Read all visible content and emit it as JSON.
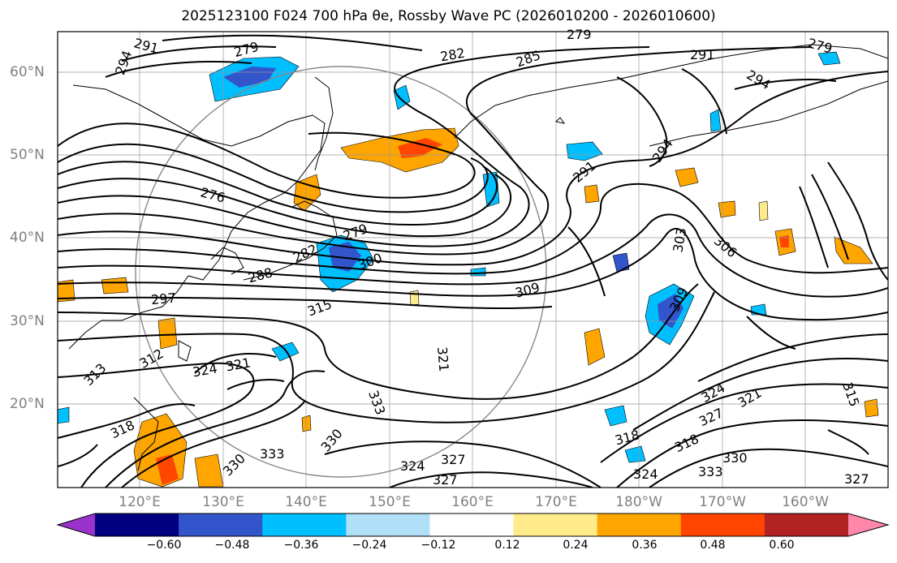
{
  "title": "2025123100 F024 700 hPa θe, Rossby Wave PC (2026010200 - 2026010600)",
  "lat_labels": [
    "60°N",
    "50°N",
    "40°N",
    "30°N",
    "20°N"
  ],
  "lon_labels": [
    "120°E",
    "130°E",
    "140°E",
    "150°E",
    "160°E",
    "170°E",
    "180°W",
    "170°W",
    "160°W"
  ],
  "colorbar": {
    "ticks": [
      "−0.60",
      "−0.48",
      "−0.36",
      "−0.24",
      "−0.12",
      "0.12",
      "0.24",
      "0.36",
      "0.48",
      "0.60"
    ],
    "colors": [
      "#9933cc",
      "#000080",
      "#3355cc",
      "#00bfff",
      "#b0e0f8",
      "#ffffff",
      "#ffeb8a",
      "#ffa500",
      "#ff4500",
      "#b22222",
      "#ff88aa"
    ]
  },
  "contour_labels": [
    "291",
    "294",
    "279",
    "282",
    "285",
    "279",
    "291",
    "294",
    "279",
    "276",
    "279",
    "282",
    "288",
    "297",
    "300",
    "315",
    "309",
    "303",
    "306",
    "291",
    "294",
    "309",
    "312",
    "313",
    "324",
    "321",
    "321",
    "333",
    "330",
    "318",
    "330",
    "333",
    "324",
    "327",
    "327",
    "324",
    "318",
    "318",
    "327",
    "324",
    "321",
    "330",
    "333",
    "327",
    "315"
  ]
}
